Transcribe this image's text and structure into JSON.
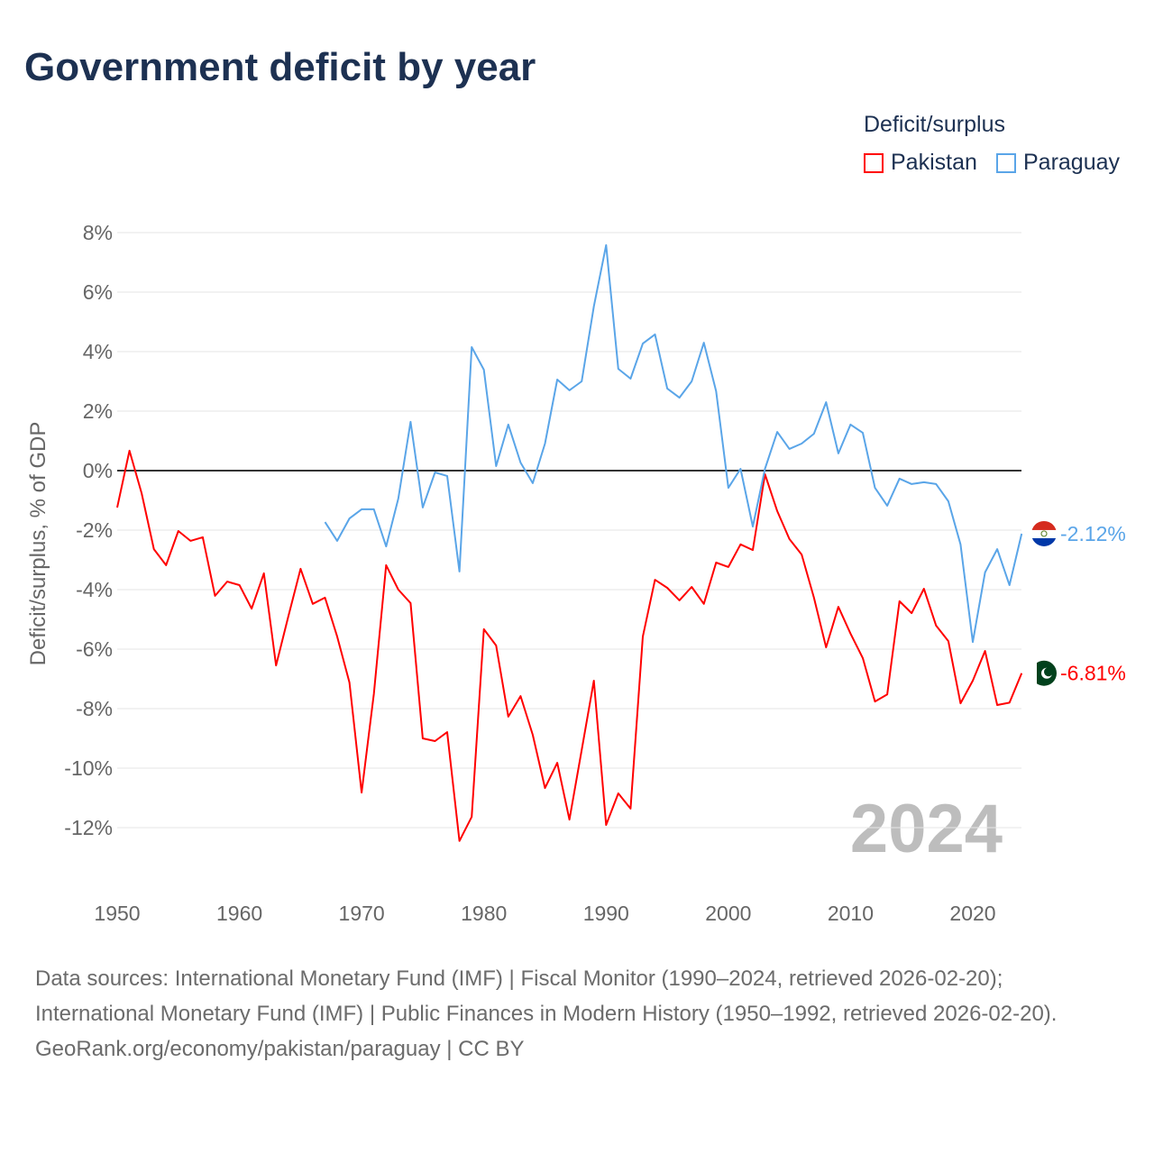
{
  "title": "Government deficit by year",
  "legend": {
    "title": "Deficit/surplus",
    "items": [
      {
        "name": "Pakistan",
        "color": "#ff0000"
      },
      {
        "name": "Paraguay",
        "color": "#5aa5e8"
      }
    ]
  },
  "footer": {
    "sources": "Data sources: International Monetary Fund (IMF) | Fiscal Monitor (1990–2024, retrieved 2026-02-20); International Monetary Fund (IMF) | Public Finances in Modern History (1950–1992, retrieved 2026-02-20).",
    "credit": "GeoRank.org/economy/pakistan/paraguay | CC BY"
  },
  "chart_data": {
    "type": "line",
    "title": "Government deficit by year",
    "ylabel": "Deficit/surplus, % of GDP",
    "xlabel": "",
    "year_label": "2024",
    "xlim": [
      1950,
      2024
    ],
    "ylim": [
      -12,
      8
    ],
    "xticks": [
      1950,
      1960,
      1970,
      1980,
      1990,
      2000,
      2010,
      2020
    ],
    "yticks": [
      -12,
      -10,
      -8,
      -6,
      -4,
      -2,
      0,
      2,
      4,
      6,
      8
    ],
    "ytick_labels": [
      "-12%",
      "-10%",
      "-8%",
      "-6%",
      "-4%",
      "-2%",
      "0%",
      "2%",
      "4%",
      "6%",
      "8%"
    ],
    "grid": true,
    "legend_position": "top-right",
    "series": [
      {
        "name": "Pakistan",
        "color": "#ff0000",
        "end_label": "-6.81%",
        "start_year": 1950,
        "values": [
          -1.24,
          0.67,
          -0.76,
          -2.64,
          -3.18,
          -2.03,
          -2.36,
          -2.24,
          -4.21,
          -3.73,
          -3.85,
          -4.64,
          -3.45,
          -6.55,
          -4.9,
          -3.3,
          -4.48,
          -4.27,
          -5.58,
          -7.12,
          -10.82,
          -7.5,
          -3.18,
          -4.0,
          -4.45,
          -9.0,
          -9.09,
          -8.79,
          -12.45,
          -11.64,
          -5.33,
          -5.88,
          -8.27,
          -7.58,
          -8.88,
          -10.67,
          -9.82,
          -11.73,
          -9.39,
          -7.06,
          -11.91,
          -10.85,
          -11.36,
          -5.58,
          -3.67,
          -3.94,
          -4.36,
          -3.91,
          -4.48,
          -3.09,
          -3.24,
          -2.48,
          -2.67,
          -0.12,
          -1.36,
          -2.3,
          -2.82,
          -4.27,
          -5.94,
          -4.58,
          -5.48,
          -6.3,
          -7.76,
          -7.52,
          -4.39,
          -4.79,
          -3.97,
          -5.21,
          -5.73,
          -7.82,
          -7.06,
          -6.06,
          -7.88,
          -7.8,
          -6.81
        ]
      },
      {
        "name": "Paraguay",
        "color": "#5aa5e8",
        "end_label": "-2.12%",
        "start_year": 1967,
        "values": [
          -1.73,
          -2.36,
          -1.61,
          -1.3,
          -1.3,
          -2.55,
          -0.94,
          1.64,
          -1.24,
          -0.06,
          -0.18,
          -3.39,
          4.15,
          3.39,
          0.15,
          1.55,
          0.27,
          -0.42,
          0.91,
          3.06,
          2.7,
          3.0,
          5.52,
          7.58,
          3.42,
          3.09,
          4.27,
          4.58,
          2.76,
          2.45,
          3.0,
          4.3,
          2.67,
          -0.58,
          0.06,
          -1.88,
          0.06,
          1.3,
          0.73,
          0.91,
          1.24,
          2.3,
          0.58,
          1.55,
          1.27,
          -0.58,
          -1.18,
          -0.27,
          -0.45,
          -0.39,
          -0.45,
          -1.03,
          -2.48,
          -5.76,
          -3.42,
          -2.64,
          -3.85,
          -2.12
        ]
      }
    ]
  }
}
